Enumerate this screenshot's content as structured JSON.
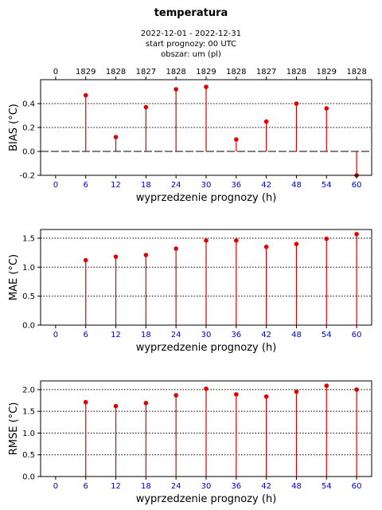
{
  "header": {
    "title": "temperatura",
    "period": "2022-12-01 - 2022-12-31",
    "start": "start prognozy: 00 UTC",
    "area": "obszar: um (pl)"
  },
  "colors": {
    "stem": "#e00000",
    "tick_blue": "#0000cc",
    "axis": "#000000"
  },
  "chart_data": [
    {
      "type": "stem",
      "ylabel": "BIAS (°C)",
      "xlabel": "wyprzedzenie prognozy (h)",
      "x": [
        0,
        6,
        12,
        18,
        24,
        30,
        36,
        42,
        48,
        54,
        60
      ],
      "values": [
        null,
        0.47,
        0.12,
        0.37,
        0.52,
        0.54,
        0.1,
        0.25,
        0.4,
        0.36,
        -0.2
      ],
      "top_labels": [
        "0",
        "1829",
        "1828",
        "1827",
        "1828",
        "1829",
        "1828",
        "1827",
        "1828",
        "1829",
        "1828"
      ],
      "ylim": [
        -0.2,
        0.6
      ],
      "yticks": [
        "-0.2",
        "0.0",
        "0.2",
        "0.4"
      ],
      "ytick_values": [
        -0.2,
        0.0,
        0.2,
        0.4
      ],
      "grid_y": [
        0.2,
        0.4
      ],
      "zero_line": true,
      "grid": true
    },
    {
      "type": "stem",
      "ylabel": "MAE (°C)",
      "xlabel": "wyprzedzenie prognozy (h)",
      "x": [
        0,
        6,
        12,
        18,
        24,
        30,
        36,
        42,
        48,
        54,
        60
      ],
      "values": [
        null,
        1.12,
        1.18,
        1.21,
        1.32,
        1.46,
        1.46,
        1.35,
        1.4,
        1.49,
        1.57
      ],
      "ylim": [
        0.0,
        1.65
      ],
      "yticks": [
        "0.0",
        "0.5",
        "1.0",
        "1.5"
      ],
      "ytick_values": [
        0.0,
        0.5,
        1.0,
        1.5
      ],
      "grid_y": [
        0.5,
        1.0,
        1.5
      ],
      "grid": true
    },
    {
      "type": "stem",
      "ylabel": "RMSE (°C)",
      "xlabel": "wyprzedzenie prognozy (h)",
      "x": [
        0,
        6,
        12,
        18,
        24,
        30,
        36,
        42,
        48,
        54,
        60
      ],
      "values": [
        null,
        1.71,
        1.62,
        1.69,
        1.87,
        2.02,
        1.89,
        1.84,
        1.95,
        2.09,
        2.0
      ],
      "ylim": [
        0.0,
        2.2
      ],
      "yticks": [
        "0.0",
        "0.5",
        "1.0",
        "1.5",
        "2.0"
      ],
      "ytick_values": [
        0.0,
        0.5,
        1.0,
        1.5,
        2.0
      ],
      "grid_y": [
        0.5,
        1.0,
        1.5,
        2.0
      ],
      "grid": true
    }
  ]
}
